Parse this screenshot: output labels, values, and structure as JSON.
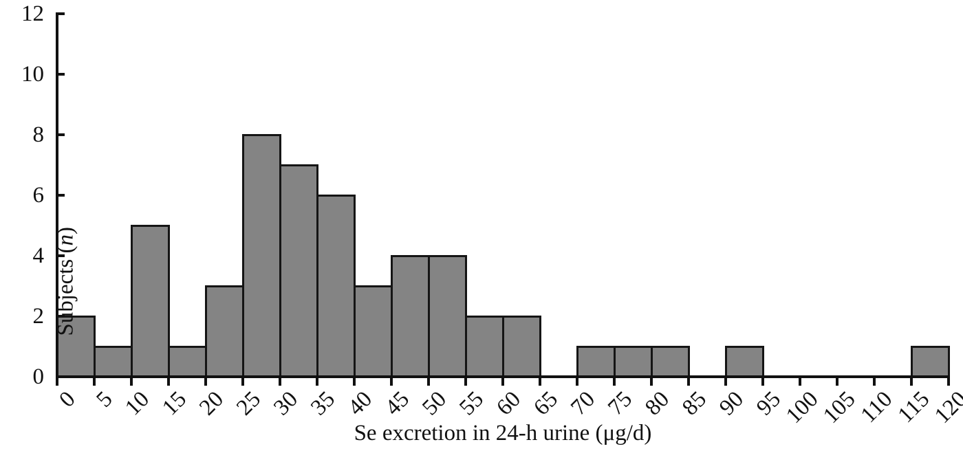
{
  "figure": {
    "background": "#ffffff"
  },
  "chart_data": {
    "type": "bar",
    "subtype": "histogram",
    "title": "",
    "xlabel": "Se excretion in 24-h urine (μg/d)",
    "ylabel": "Subjects (n)",
    "ylabel_prefix": "Subjects (",
    "ylabel_italic": "n",
    "ylabel_suffix": ")",
    "bin_width": 5,
    "bin_edges": [
      0,
      5,
      10,
      15,
      20,
      25,
      30,
      35,
      40,
      45,
      50,
      55,
      60,
      65,
      70,
      75,
      80,
      85,
      90,
      95,
      100,
      105,
      110,
      115,
      120
    ],
    "counts": [
      2,
      1,
      5,
      1,
      3,
      8,
      7,
      6,
      3,
      4,
      4,
      2,
      2,
      0,
      1,
      1,
      1,
      0,
      1,
      0,
      0,
      0,
      0,
      1
    ],
    "x_tick_labels": [
      "0",
      "5",
      "10",
      "15",
      "20",
      "25",
      "30",
      "35",
      "40",
      "45",
      "50",
      "55",
      "60",
      "65",
      "70",
      "75",
      "80",
      "85",
      "90",
      "95",
      "100",
      "105",
      "110",
      "115",
      "120"
    ],
    "y_tick_labels": [
      "0",
      "2",
      "4",
      "6",
      "8",
      "10",
      "12"
    ],
    "xlim": [
      0,
      120
    ],
    "ylim": [
      0,
      12
    ],
    "grid": false,
    "legend": null,
    "colors": {
      "bar_fill": "#848484",
      "bar_edge": "#151515",
      "axis": "#111111",
      "text": "#111111"
    }
  }
}
